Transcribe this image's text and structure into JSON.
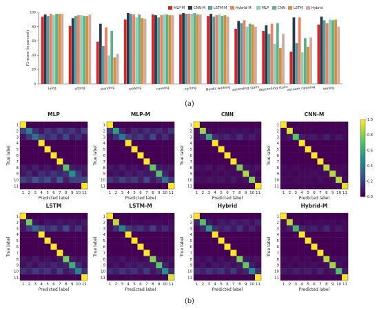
{
  "panel_labels": [
    "(a)",
    "(b)"
  ],
  "chart_data": [
    {
      "type": "bar",
      "title": "",
      "xlabel": "",
      "ylabel": "F1-score (in percent)",
      "ylim": [
        0,
        100
      ],
      "yticks": [
        "0",
        "20",
        "40",
        "60",
        "80",
        "100"
      ],
      "grid": false,
      "legend_position": "top-right",
      "categories": [
        "lying",
        "sitting",
        "standing",
        "walking",
        "running",
        "cycling",
        "Nordic walking",
        "ascending stairs",
        "descending stairs",
        "vacuum cleaning",
        "ironing"
      ],
      "series": [
        {
          "name": "MLP-M",
          "color": "#d62728",
          "values": [
            94,
            81,
            59,
            90,
            97,
            97,
            95,
            77,
            74,
            45,
            83
          ]
        },
        {
          "name": "CNN-M",
          "color": "#2b3a4a",
          "values": [
            97,
            92,
            84,
            99,
            96,
            99,
            98,
            88,
            82,
            93,
            94
          ]
        },
        {
          "name": "LSTM-M",
          "color": "#5b9aa0",
          "values": [
            95,
            95,
            53,
            98,
            93,
            98,
            94,
            85,
            70,
            57,
            89
          ]
        },
        {
          "name": "Hybrid-M",
          "color": "#f08060",
          "values": [
            98,
            96,
            79,
            97,
            96,
            98,
            96,
            89,
            84,
            93,
            85
          ]
        },
        {
          "name": "MLP",
          "color": "#8fd1b8",
          "values": [
            96,
            96,
            40,
            93,
            97,
            98,
            97,
            80,
            56,
            44,
            90
          ]
        },
        {
          "name": "CNN",
          "color": "#5fb08a",
          "values": [
            98,
            95,
            74,
            97,
            97,
            99,
            95,
            84,
            85,
            64,
            89
          ]
        },
        {
          "name": "LSTM",
          "color": "#d4903a",
          "values": [
            98,
            95,
            37,
            92,
            96,
            97,
            96,
            83,
            50,
            52,
            90
          ]
        },
        {
          "name": "Hybrid",
          "color": "#d4aaa0",
          "values": [
            98,
            97,
            42,
            91,
            96,
            97,
            94,
            80,
            70,
            65,
            80
          ]
        }
      ]
    },
    {
      "type": "heatmap",
      "colorbar": {
        "ticks": [
          "0.0",
          "0.2",
          "0.4",
          "0.6",
          "0.8",
          "1.0"
        ],
        "range": [
          0,
          1
        ]
      },
      "matrices": [
        {
          "title": "MLP",
          "diagonal": [
            1.0,
            0.42,
            0.38,
            1.0,
            1.0,
            1.0,
            1.0,
            0.72,
            0.5,
            0.2,
            1.0
          ]
        },
        {
          "title": "MLP-M",
          "diagonal": [
            1.0,
            0.55,
            0.4,
            1.0,
            1.0,
            1.0,
            1.0,
            0.75,
            0.7,
            0.38,
            1.0
          ]
        },
        {
          "title": "CNN",
          "diagonal": [
            1.0,
            0.85,
            0.6,
            1.0,
            1.0,
            1.0,
            1.0,
            0.8,
            0.88,
            0.8,
            1.0
          ]
        },
        {
          "title": "CNN-M",
          "diagonal": [
            1.0,
            0.95,
            0.72,
            1.0,
            1.0,
            1.0,
            1.0,
            0.9,
            0.88,
            0.9,
            0.95
          ]
        },
        {
          "title": "LSTM",
          "diagonal": [
            1.0,
            0.78,
            0.35,
            1.0,
            1.0,
            1.0,
            1.0,
            0.78,
            0.62,
            0.45,
            1.0
          ]
        },
        {
          "title": "LSTM-M",
          "diagonal": [
            1.0,
            0.9,
            0.45,
            1.0,
            1.0,
            1.0,
            1.0,
            0.82,
            0.72,
            0.5,
            0.95
          ]
        },
        {
          "title": "Hybrid",
          "diagonal": [
            1.0,
            0.7,
            0.55,
            1.0,
            1.0,
            1.0,
            1.0,
            0.8,
            0.75,
            0.5,
            1.0
          ]
        },
        {
          "title": "Hybrid-M",
          "diagonal": [
            1.0,
            0.9,
            0.65,
            1.0,
            1.0,
            1.0,
            1.0,
            0.88,
            0.85,
            0.7,
            0.98
          ]
        }
      ],
      "row_labels": [
        "1",
        "2",
        "3",
        "4",
        "5",
        "6",
        "7",
        "8",
        "9",
        "10",
        "11"
      ],
      "col_labels": [
        "1",
        "2",
        "3",
        "4",
        "5",
        "6",
        "7",
        "8",
        "9",
        "10",
        "11"
      ],
      "xlabel": "Predicted label",
      "ylabel": "True label"
    }
  ]
}
